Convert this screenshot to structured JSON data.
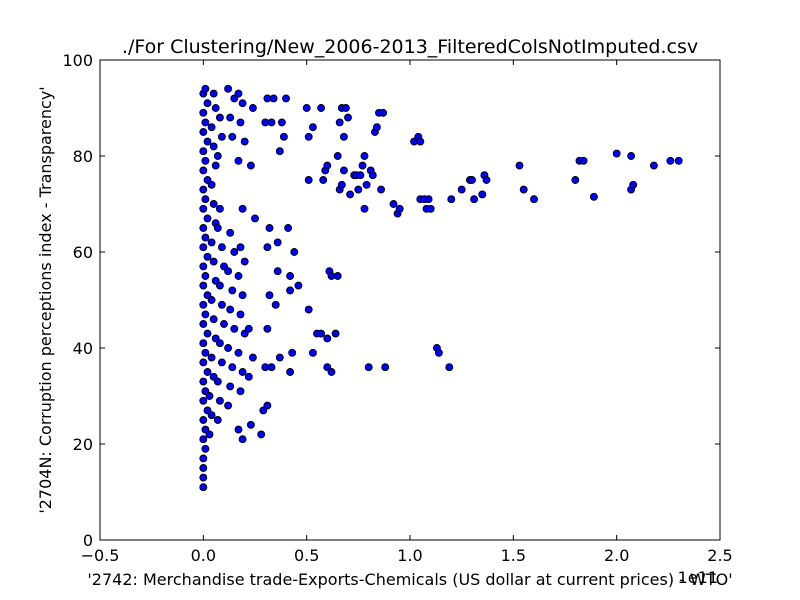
{
  "chart_data": {
    "type": "scatter",
    "title": "./For Clustering/New_2006-2013_FilteredColsNotImputed.csv",
    "xlabel": "'2742: Merchandise trade-Exports-Chemicals (US dollar at current prices) - WTO'",
    "ylabel": "'2704N: Corruption perceptions index - Transparency'",
    "x_offset_label": "1e11",
    "xlim": [
      -0.5,
      2.5
    ],
    "ylim": [
      0,
      100
    ],
    "xticks": [
      -0.5,
      0.0,
      0.5,
      1.0,
      1.5,
      2.0,
      2.5
    ],
    "xtick_labels": [
      "−0.5",
      "0.0",
      "0.5",
      "1.0",
      "1.5",
      "2.0",
      "2.5"
    ],
    "yticks": [
      0,
      20,
      40,
      60,
      80,
      100
    ],
    "ytick_labels": [
      "0",
      "20",
      "40",
      "60",
      "80",
      "100"
    ],
    "marker_color": "#0000ff",
    "grid": false,
    "series": [
      {
        "points": [
          [
            0.0,
            11
          ],
          [
            0.0,
            13
          ],
          [
            0.0,
            15
          ],
          [
            0.0,
            17
          ],
          [
            0.01,
            19
          ],
          [
            0.0,
            21
          ],
          [
            0.01,
            23
          ],
          [
            0.0,
            25
          ],
          [
            0.02,
            27
          ],
          [
            0.0,
            29
          ],
          [
            0.01,
            31
          ],
          [
            0.0,
            33
          ],
          [
            0.02,
            35
          ],
          [
            0.0,
            37
          ],
          [
            0.01,
            39
          ],
          [
            0.0,
            41
          ],
          [
            0.02,
            43
          ],
          [
            0.0,
            45
          ],
          [
            0.01,
            47
          ],
          [
            0.0,
            49
          ],
          [
            0.02,
            51
          ],
          [
            0.0,
            53
          ],
          [
            0.01,
            55
          ],
          [
            0.0,
            57
          ],
          [
            0.02,
            59
          ],
          [
            0.0,
            61
          ],
          [
            0.01,
            63
          ],
          [
            0.0,
            65
          ],
          [
            0.02,
            67
          ],
          [
            0.0,
            69
          ],
          [
            0.01,
            71
          ],
          [
            0.0,
            73
          ],
          [
            0.02,
            75
          ],
          [
            0.0,
            77
          ],
          [
            0.01,
            79
          ],
          [
            0.0,
            81
          ],
          [
            0.02,
            83
          ],
          [
            0.0,
            85
          ],
          [
            0.01,
            87
          ],
          [
            0.0,
            89
          ],
          [
            0.02,
            91
          ],
          [
            0.0,
            93
          ],
          [
            0.01,
            94
          ],
          [
            0.03,
            22
          ],
          [
            0.04,
            26
          ],
          [
            0.03,
            30
          ],
          [
            0.05,
            34
          ],
          [
            0.04,
            38
          ],
          [
            0.06,
            42
          ],
          [
            0.05,
            46
          ],
          [
            0.04,
            50
          ],
          [
            0.06,
            54
          ],
          [
            0.05,
            58
          ],
          [
            0.04,
            62
          ],
          [
            0.06,
            66
          ],
          [
            0.05,
            70
          ],
          [
            0.04,
            74
          ],
          [
            0.06,
            78
          ],
          [
            0.05,
            82
          ],
          [
            0.04,
            86
          ],
          [
            0.06,
            90
          ],
          [
            0.05,
            93
          ],
          [
            0.07,
            25
          ],
          [
            0.08,
            29
          ],
          [
            0.07,
            33
          ],
          [
            0.09,
            37
          ],
          [
            0.08,
            41
          ],
          [
            0.1,
            45
          ],
          [
            0.09,
            49
          ],
          [
            0.08,
            53
          ],
          [
            0.1,
            57
          ],
          [
            0.09,
            61
          ],
          [
            0.07,
            65
          ],
          [
            0.08,
            69
          ],
          [
            0.07,
            80
          ],
          [
            0.09,
            84
          ],
          [
            0.08,
            88
          ],
          [
            0.12,
            28
          ],
          [
            0.13,
            32
          ],
          [
            0.14,
            36
          ],
          [
            0.12,
            40
          ],
          [
            0.15,
            44
          ],
          [
            0.13,
            48
          ],
          [
            0.14,
            52
          ],
          [
            0.12,
            56
          ],
          [
            0.15,
            60
          ],
          [
            0.13,
            64
          ],
          [
            0.14,
            84
          ],
          [
            0.13,
            88
          ],
          [
            0.15,
            92
          ],
          [
            0.12,
            94
          ],
          [
            0.17,
            23
          ],
          [
            0.18,
            31
          ],
          [
            0.19,
            35
          ],
          [
            0.17,
            39
          ],
          [
            0.2,
            43
          ],
          [
            0.18,
            47
          ],
          [
            0.19,
            51
          ],
          [
            0.17,
            55
          ],
          [
            0.2,
            58
          ],
          [
            0.18,
            61
          ],
          [
            0.19,
            69
          ],
          [
            0.17,
            79
          ],
          [
            0.2,
            83
          ],
          [
            0.18,
            87
          ],
          [
            0.19,
            91
          ],
          [
            0.17,
            93
          ],
          [
            0.19,
            21
          ],
          [
            0.23,
            24
          ],
          [
            0.22,
            34
          ],
          [
            0.24,
            38
          ],
          [
            0.22,
            44
          ],
          [
            0.25,
            67
          ],
          [
            0.23,
            78
          ],
          [
            0.24,
            90
          ],
          [
            0.28,
            22
          ],
          [
            0.29,
            27
          ],
          [
            0.31,
            28
          ],
          [
            0.3,
            36
          ],
          [
            0.33,
            36
          ],
          [
            0.31,
            44
          ],
          [
            0.32,
            51
          ],
          [
            0.35,
            49
          ],
          [
            0.31,
            61
          ],
          [
            0.32,
            65
          ],
          [
            0.36,
            62
          ],
          [
            0.36,
            56
          ],
          [
            0.37,
            38
          ],
          [
            0.3,
            87
          ],
          [
            0.33,
            87
          ],
          [
            0.34,
            92
          ],
          [
            0.31,
            92
          ],
          [
            0.37,
            81
          ],
          [
            0.39,
            84
          ],
          [
            0.38,
            87
          ],
          [
            0.4,
            92
          ],
          [
            0.41,
            65
          ],
          [
            0.43,
            39
          ],
          [
            0.42,
            35
          ],
          [
            0.42,
            52
          ],
          [
            0.42,
            55
          ],
          [
            0.44,
            60
          ],
          [
            0.46,
            53
          ],
          [
            0.5,
            90
          ],
          [
            0.51,
            84
          ],
          [
            0.53,
            86
          ],
          [
            0.51,
            75
          ],
          [
            0.53,
            39
          ],
          [
            0.55,
            43
          ],
          [
            0.51,
            48
          ],
          [
            0.57,
            90
          ],
          [
            0.58,
            75
          ],
          [
            0.59,
            77
          ],
          [
            0.6,
            78
          ],
          [
            0.57,
            43
          ],
          [
            0.6,
            42
          ],
          [
            0.6,
            36
          ],
          [
            0.62,
            35
          ],
          [
            0.61,
            56
          ],
          [
            0.62,
            55
          ],
          [
            0.64,
            43
          ],
          [
            0.65,
            55
          ],
          [
            0.65,
            80
          ],
          [
            0.66,
            87
          ],
          [
            0.67,
            90
          ],
          [
            0.66,
            73
          ],
          [
            0.67,
            74
          ],
          [
            0.68,
            77
          ],
          [
            0.68,
            84
          ],
          [
            0.69,
            90
          ],
          [
            0.7,
            88
          ],
          [
            0.71,
            72
          ],
          [
            0.73,
            76
          ],
          [
            0.74,
            76
          ],
          [
            0.75,
            73
          ],
          [
            0.76,
            76
          ],
          [
            0.77,
            78
          ],
          [
            0.78,
            80
          ],
          [
            0.78,
            69
          ],
          [
            0.79,
            74
          ],
          [
            0.8,
            36
          ],
          [
            0.81,
            77
          ],
          [
            0.82,
            76
          ],
          [
            0.83,
            85
          ],
          [
            0.84,
            86
          ],
          [
            0.85,
            89
          ],
          [
            0.86,
            73
          ],
          [
            0.87,
            89
          ],
          [
            0.88,
            36
          ],
          [
            0.92,
            70
          ],
          [
            0.94,
            68
          ],
          [
            0.95,
            69
          ],
          [
            1.02,
            83
          ],
          [
            1.04,
            84
          ],
          [
            1.05,
            83
          ],
          [
            1.05,
            71
          ],
          [
            1.07,
            71
          ],
          [
            1.08,
            69
          ],
          [
            1.09,
            71
          ],
          [
            1.1,
            69
          ],
          [
            1.13,
            40
          ],
          [
            1.14,
            39
          ],
          [
            1.19,
            36
          ],
          [
            1.2,
            71
          ],
          [
            1.25,
            73
          ],
          [
            1.29,
            75
          ],
          [
            1.3,
            75
          ],
          [
            1.31,
            71
          ],
          [
            1.35,
            72
          ],
          [
            1.36,
            76
          ],
          [
            1.37,
            75
          ],
          [
            1.53,
            78
          ],
          [
            1.55,
            73
          ],
          [
            1.6,
            71
          ],
          [
            1.8,
            75
          ],
          [
            1.82,
            79
          ],
          [
            1.84,
            79
          ],
          [
            1.89,
            71.5
          ],
          [
            2.0,
            80.5
          ],
          [
            2.07,
            80
          ],
          [
            2.07,
            73
          ],
          [
            2.08,
            74
          ],
          [
            2.18,
            78
          ],
          [
            2.26,
            79
          ],
          [
            2.3,
            79
          ]
        ]
      }
    ]
  }
}
